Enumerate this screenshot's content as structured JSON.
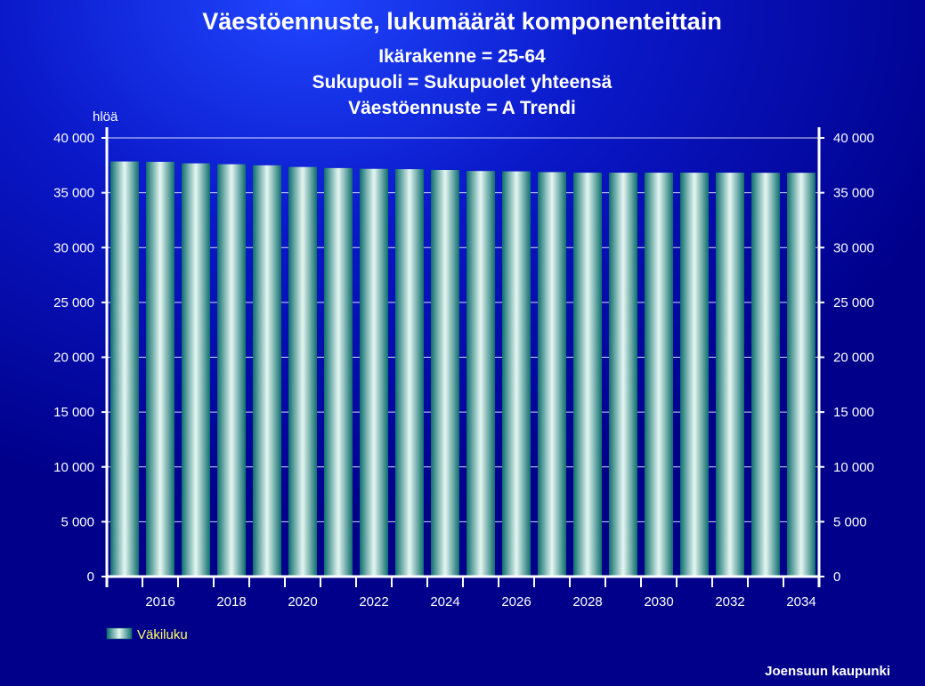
{
  "chart_data": {
    "type": "bar",
    "title": "Väestöennuste, lukumäärät komponenteittain",
    "subtitles": [
      "Ikärakenne = 25-64",
      "Sukupuoli = Sukupuolet yhteensä",
      "Väestöennuste = A Trendi"
    ],
    "ylabel": "hlöä",
    "ylim": [
      0,
      40000
    ],
    "yticks": [
      0,
      5000,
      10000,
      15000,
      20000,
      25000,
      30000,
      35000,
      40000
    ],
    "ytick_labels": [
      "0",
      "5 000",
      "10 000",
      "15 000",
      "20 000",
      "25 000",
      "30 000",
      "35 000",
      "40 000"
    ],
    "categories": [
      2015,
      2016,
      2017,
      2018,
      2019,
      2020,
      2021,
      2022,
      2023,
      2024,
      2025,
      2026,
      2027,
      2028,
      2029,
      2030,
      2031,
      2032,
      2033,
      2034
    ],
    "xtick_labels": [
      {
        "year": 2016,
        "label": "2016"
      },
      {
        "year": 2018,
        "label": "2018"
      },
      {
        "year": 2020,
        "label": "2020"
      },
      {
        "year": 2022,
        "label": "2022"
      },
      {
        "year": 2024,
        "label": "2024"
      },
      {
        "year": 2026,
        "label": "2026"
      },
      {
        "year": 2028,
        "label": "2028"
      },
      {
        "year": 2030,
        "label": "2030"
      },
      {
        "year": 2032,
        "label": "2032"
      },
      {
        "year": 2034,
        "label": "2034"
      }
    ],
    "series": [
      {
        "name": "Väkiluku",
        "values": [
          37850,
          37820,
          37680,
          37600,
          37500,
          37350,
          37250,
          37180,
          37150,
          37080,
          36980,
          36950,
          36880,
          36830,
          36830,
          36830,
          36830,
          36830,
          36820,
          36820
        ]
      }
    ],
    "grid": true,
    "legend": "bottom-left",
    "colors": {
      "background": "#00008a",
      "glow": "#1a3cff",
      "bar_edge": "#0d6e6e",
      "bar_center": "#e6f7f2",
      "axis": "#ffffff",
      "grid": "#ffffff",
      "text": "#ffffff",
      "legend_text": "#ffff66"
    }
  },
  "footer": {
    "credit": "Joensuun kaupunki"
  }
}
